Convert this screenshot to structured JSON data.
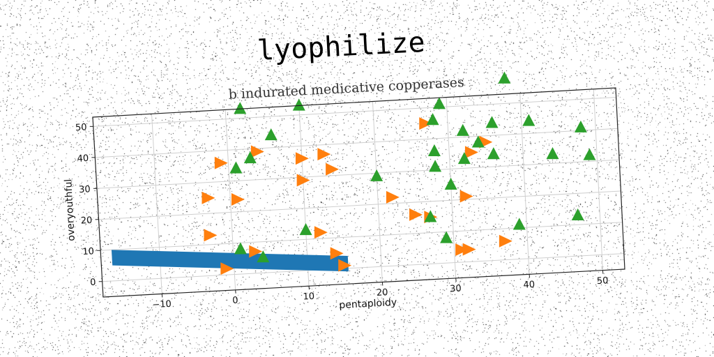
{
  "chart_data": {
    "type": "scatter",
    "title": "lyophilize",
    "subtitle": "b indurated medicative copperases",
    "xlabel": "pentaploidy",
    "ylabel": "overyouthful",
    "xlim": [
      -18,
      53
    ],
    "ylim": [
      -5,
      53
    ],
    "xticks": [
      -10,
      0,
      10,
      20,
      30,
      40,
      50
    ],
    "yticks": [
      0,
      10,
      20,
      30,
      40,
      50
    ],
    "xtick_labels": [
      "−10",
      "0",
      "10",
      "20",
      "30",
      "40",
      "50"
    ],
    "ytick_labels": [
      "0",
      "10",
      "20",
      "30",
      "40",
      "50"
    ],
    "grid": true,
    "colors": {
      "band": "#1f77b4",
      "orange": "#ff7f0e",
      "green": "#2ca02c"
    },
    "band": {
      "name": "",
      "x": [
        -16.5,
        15.5
      ],
      "y_top_start": 10,
      "y_top_end": 4,
      "y_bottom_start": 5,
      "y_bottom_end": -1
    },
    "series": [
      {
        "name": "",
        "marker": "triangle-right",
        "color": "#ff7f0e",
        "points": [
          [
            -1,
            36
          ],
          [
            4,
            39
          ],
          [
            10,
            36
          ],
          [
            13,
            37
          ],
          [
            10,
            29
          ],
          [
            14,
            32
          ],
          [
            -3,
            25
          ],
          [
            1,
            24
          ],
          [
            -3,
            13
          ],
          [
            12,
            12
          ],
          [
            3,
            7
          ],
          [
            -1,
            2
          ],
          [
            14,
            5
          ],
          [
            15,
            1
          ],
          [
            22,
            22
          ],
          [
            25,
            16
          ],
          [
            27,
            15
          ],
          [
            27,
            45
          ],
          [
            32,
            21
          ],
          [
            33,
            35
          ],
          [
            35,
            38
          ],
          [
            37,
            6
          ],
          [
            31,
            4
          ],
          [
            32,
            4
          ]
        ]
      },
      {
        "name": "",
        "marker": "triangle-up",
        "color": "#2ca02c",
        "points": [
          [
            2,
            53
          ],
          [
            10,
            53
          ],
          [
            6,
            44
          ],
          [
            3,
            37
          ],
          [
            1,
            34
          ],
          [
            10,
            13
          ],
          [
            1,
            8
          ],
          [
            4,
            5
          ],
          [
            20,
            29
          ],
          [
            28,
            46
          ],
          [
            29,
            51
          ],
          [
            32,
            42
          ],
          [
            34,
            38
          ],
          [
            36,
            44
          ],
          [
            28,
            36
          ],
          [
            28,
            31
          ],
          [
            32,
            33
          ],
          [
            36,
            34
          ],
          [
            38,
            58
          ],
          [
            41,
            44
          ],
          [
            44,
            33
          ],
          [
            48,
            41
          ],
          [
            49,
            32
          ],
          [
            30,
            25
          ],
          [
            27,
            15
          ],
          [
            29,
            8
          ],
          [
            39,
            11
          ],
          [
            47,
            13
          ]
        ]
      }
    ]
  }
}
